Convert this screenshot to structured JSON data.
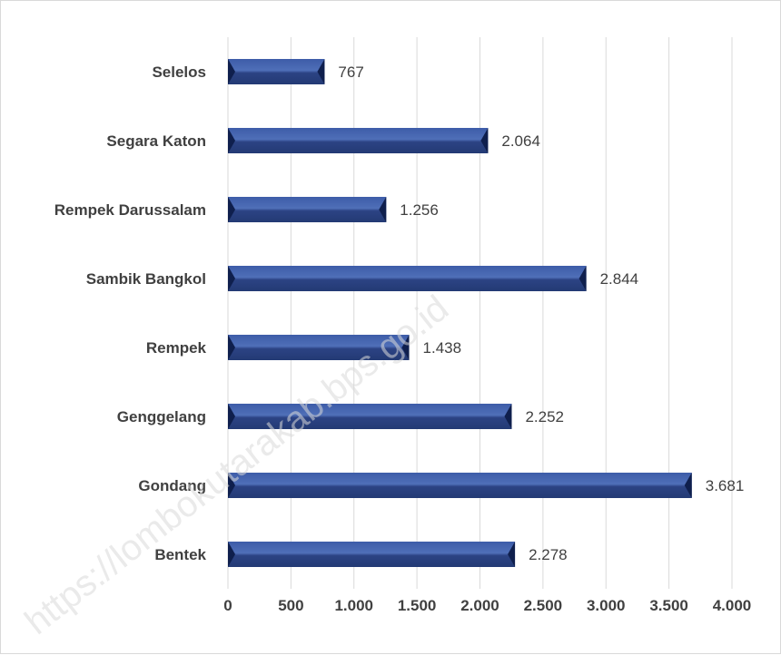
{
  "watermark": "https://lombokutarakab.bps.go.id",
  "colors": {
    "bar_top": "#4f6fb8",
    "bar_bottom": "#2a4080",
    "bar_end": "#0f1f4d",
    "grid": "#d9d9d9",
    "text": "#404040"
  },
  "chart_data": {
    "type": "bar",
    "orientation": "horizontal",
    "categories": [
      "Selelos",
      "Segara Katon",
      "Rempek Darussalam",
      "Sambik Bangkol",
      "Rempek",
      "Genggelang",
      "Gondang",
      "Bentek"
    ],
    "values": [
      767,
      2064,
      1256,
      2844,
      1438,
      2252,
      3681,
      2278
    ],
    "value_labels": [
      "767",
      "2.064",
      "1.256",
      "2.844",
      "1.438",
      "2.252",
      "3.681",
      "2.278"
    ],
    "x_ticks": [
      0,
      500,
      1000,
      1500,
      2000,
      2500,
      3000,
      3500,
      4000
    ],
    "x_tick_labels": [
      "0",
      "500",
      "1.000",
      "1.500",
      "2.000",
      "2.500",
      "3.000",
      "3.500",
      "4.000"
    ],
    "xlim": [
      0,
      4000
    ],
    "grid": "vertical",
    "legend": "none"
  }
}
